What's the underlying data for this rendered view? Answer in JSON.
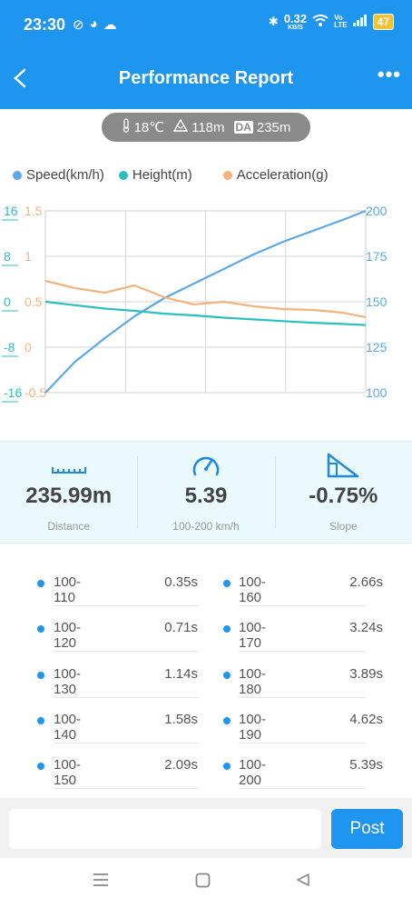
{
  "status_bar": {
    "time": "23:30",
    "net_speed": "0.32",
    "net_unit": "KB/S",
    "volte_top": "Vo",
    "volte_bottom": "LTE",
    "battery": "47"
  },
  "header": {
    "title": "Performance Report"
  },
  "conditions": {
    "temperature": "18℃",
    "altitude": "118m",
    "da_label": "DA",
    "density_altitude": "235m"
  },
  "legend": [
    {
      "label": "Speed(km/h)",
      "color": "#5aa9e6"
    },
    {
      "label": "Height(m)",
      "color": "#2bbfc0"
    },
    {
      "label": "Acceleration(g)",
      "color": "#f2b47e"
    }
  ],
  "chart_data": {
    "type": "line",
    "x": [
      0,
      0.5,
      1,
      1.5,
      2,
      2.5,
      3,
      3.5,
      4,
      4.5,
      5,
      5.39
    ],
    "series": [
      {
        "name": "Speed(km/h)",
        "axis": "right",
        "color": "#5aa9e6",
        "values": [
          100,
          117,
          130,
          142,
          152,
          160,
          168,
          176,
          183,
          189,
          195,
          200
        ]
      },
      {
        "name": "Height(m)",
        "axis": "left-outer",
        "color": "#2bbfc0",
        "values": [
          0,
          -0.6,
          -1.2,
          -1.6,
          -2.1,
          -2.4,
          -2.8,
          -3.1,
          -3.4,
          -3.7,
          -3.9,
          -4.1
        ]
      },
      {
        "name": "Acceleration(g)",
        "axis": "left-inner",
        "color": "#f2b47e",
        "values": [
          0.73,
          0.65,
          0.6,
          0.68,
          0.55,
          0.47,
          0.5,
          0.45,
          0.42,
          0.41,
          0.38,
          0.33
        ]
      }
    ],
    "axes": {
      "left_outer": {
        "ticks": [
          "16",
          "8",
          "0",
          "-8",
          "-16"
        ],
        "range": [
          -16,
          16
        ],
        "color": "#2bbfc0"
      },
      "left_inner": {
        "ticks": [
          "1.5",
          "1",
          "0.5",
          "0",
          "-0.5"
        ],
        "range": [
          -0.5,
          1.5
        ],
        "color": "#f2b47e"
      },
      "right": {
        "ticks": [
          "200",
          "175",
          "150",
          "125",
          "100"
        ],
        "range": [
          100,
          200
        ],
        "color": "#5aa9e6"
      }
    },
    "grid": true
  },
  "stats": [
    {
      "icon": "ruler-icon",
      "value": "235.99m",
      "label": "Distance"
    },
    {
      "icon": "speedometer-icon",
      "value": "5.39",
      "label": "100-200 km/h"
    },
    {
      "icon": "slope-icon",
      "value": "-0.75%",
      "label": "Slope"
    }
  ],
  "splits": [
    {
      "range": "100-110",
      "time": "0.35s"
    },
    {
      "range": "100-120",
      "time": "0.71s"
    },
    {
      "range": "100-130",
      "time": "1.14s"
    },
    {
      "range": "100-140",
      "time": "1.58s"
    },
    {
      "range": "100-150",
      "time": "2.09s"
    },
    {
      "range": "100-160",
      "time": "2.66s"
    },
    {
      "range": "100-170",
      "time": "3.24s"
    },
    {
      "range": "100-180",
      "time": "3.89s"
    },
    {
      "range": "100-190",
      "time": "4.62s"
    },
    {
      "range": "100-200",
      "time": "5.39s"
    }
  ],
  "post": {
    "button_label": "Post",
    "placeholder": ""
  }
}
